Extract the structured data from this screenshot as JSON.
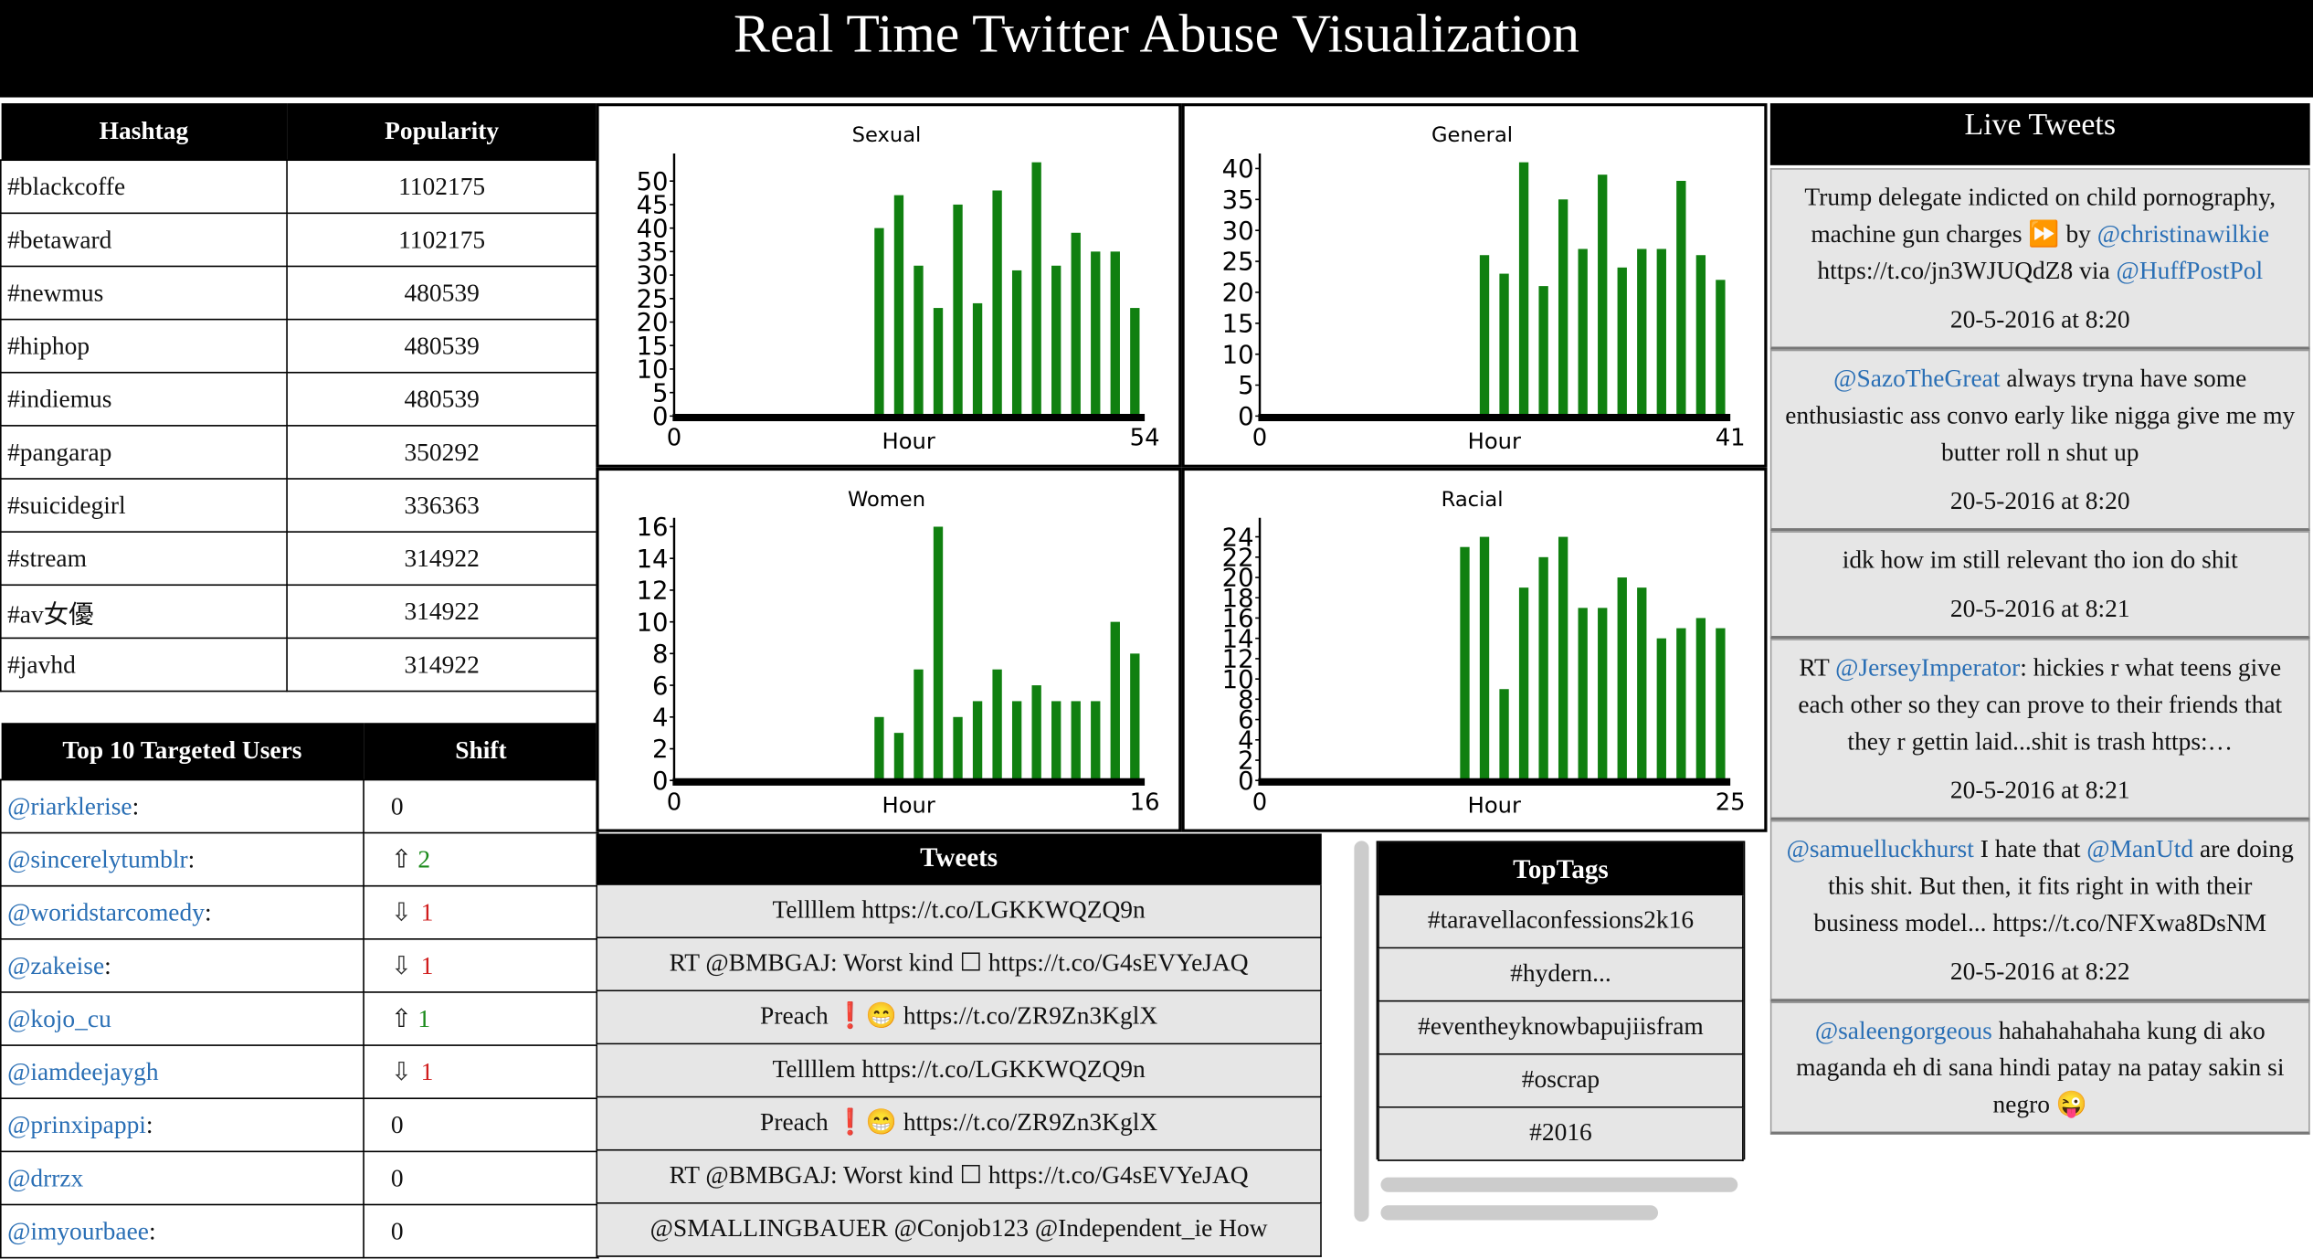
{
  "header": {
    "title": "Real Time Twitter Abuse Visualization"
  },
  "hashtags": {
    "columns": [
      "Hashtag",
      "Popularity"
    ],
    "rows": [
      [
        "#blackcoffe",
        "1102175"
      ],
      [
        "#betaward",
        "1102175"
      ],
      [
        "#newmus",
        "480539"
      ],
      [
        "#hiphop",
        "480539"
      ],
      [
        "#indiemus",
        "480539"
      ],
      [
        "#pangarap",
        "350292"
      ],
      [
        "#suicidegirl",
        "336363"
      ],
      [
        "#stream",
        "314922"
      ],
      [
        "#av女優",
        "314922"
      ],
      [
        "#javhd",
        "314922"
      ]
    ]
  },
  "users": {
    "columns": [
      "Top 10 Targeted Users",
      "Shift"
    ],
    "rows": [
      {
        "handle": "@riarklerise",
        "suffix": ":",
        "shift": "0",
        "direction": "none"
      },
      {
        "handle": "@sincerelytumblr",
        "suffix": ":",
        "shift": "2",
        "direction": "up"
      },
      {
        "handle": "@woridstarcomedy",
        "suffix": ":",
        "shift": "1",
        "direction": "down"
      },
      {
        "handle": "@zakeise",
        "suffix": ":",
        "shift": "1",
        "direction": "down"
      },
      {
        "handle": "@kojo_cu",
        "shift": "1",
        "direction": "up"
      },
      {
        "handle": "@iamdeejaygh",
        "shift": "1",
        "direction": "down"
      },
      {
        "handle": "@prinxipappi",
        "suffix": ":",
        "shift": "0",
        "direction": "none"
      },
      {
        "handle": "@drrzx",
        "shift": "0",
        "direction": "none"
      },
      {
        "handle": "@imyourbaee",
        "suffix": ":",
        "shift": "0",
        "direction": "none"
      }
    ]
  },
  "chart_data": [
    {
      "type": "bar",
      "title": "Sexual",
      "x_label": "Hour",
      "color": "#108010",
      "ylim": [
        0,
        54
      ],
      "yticks": [
        0,
        5,
        10,
        15,
        20,
        25,
        30,
        35,
        40,
        45,
        50
      ],
      "values": [
        0,
        0,
        0,
        0,
        0,
        0,
        0,
        0,
        0,
        0,
        40,
        47,
        32,
        23,
        45,
        24,
        48,
        31,
        54,
        32,
        39,
        35,
        35,
        23
      ]
    },
    {
      "type": "bar",
      "title": "General",
      "x_label": "Hour",
      "color": "#108010",
      "ylim": [
        0,
        41
      ],
      "yticks": [
        0,
        5,
        10,
        15,
        20,
        25,
        30,
        35,
        40
      ],
      "values": [
        0,
        0,
        0,
        0,
        0,
        0,
        0,
        0,
        0,
        0,
        0,
        26,
        23,
        41,
        21,
        35,
        27,
        39,
        24,
        27,
        27,
        38,
        26,
        22
      ]
    },
    {
      "type": "bar",
      "title": "Women",
      "x_label": "Hour",
      "color": "#108010",
      "ylim": [
        0,
        16
      ],
      "yticks": [
        0,
        2,
        4,
        6,
        8,
        10,
        12,
        14,
        16
      ],
      "values": [
        0,
        0,
        0,
        0,
        0,
        0,
        0,
        0,
        0,
        0,
        4,
        3,
        7,
        16,
        4,
        5,
        7,
        5,
        6,
        5,
        5,
        5,
        10,
        8
      ]
    },
    {
      "type": "bar",
      "title": "Racial",
      "x_label": "Hour",
      "color": "#108010",
      "ylim": [
        0,
        25
      ],
      "yticks": [
        0,
        2,
        4,
        6,
        8,
        10,
        12,
        14,
        16,
        18,
        20,
        22,
        24
      ],
      "values": [
        0,
        0,
        0,
        0,
        0,
        0,
        0,
        0,
        0,
        0,
        23,
        24,
        9,
        19,
        22,
        24,
        17,
        17,
        20,
        19,
        14,
        15,
        16,
        15
      ]
    }
  ],
  "tweets": {
    "title": "Tweets",
    "rows": [
      "Tellllem https://t.co/LGKKWQZQ9n",
      "RT @BMBGAJ: Worst kind ☐ https://t.co/G4sEVYeJAQ",
      "Preach ❗😁 https://t.co/ZR9Zn3KglX",
      "Tellllem https://t.co/LGKKWQZQ9n",
      "Preach ❗😁 https://t.co/ZR9Zn3KglX",
      "RT @BMBGAJ: Worst kind ☐ https://t.co/G4sEVYeJAQ",
      "@SMALLINGBAUER @Conjob123 @Independent_ie How"
    ]
  },
  "top_tags": {
    "title": "TopTags",
    "rows": [
      "#taravellaconfessions2k16",
      "#hydern...",
      "#eventheyknowbapujiisfram",
      "#oscrap",
      "#2016"
    ]
  },
  "live_tweets": {
    "title": "Live Tweets",
    "items": [
      {
        "parts": [
          {
            "text": "Trump delegate indicted on child pornography, machine gun charges ⏩ by "
          },
          {
            "mention": "@christinawilkie"
          },
          {
            "text": " https://t.co/jn3WJUQdZ8 via "
          },
          {
            "mention": "@HuffPostPol"
          }
        ],
        "date": "20-5-2016 at 8:20"
      },
      {
        "parts": [
          {
            "mention": "@SazoTheGreat"
          },
          {
            "text": " always tryna have some enthusiastic ass convo early like nigga give me my butter roll n shut up"
          }
        ],
        "date": "20-5-2016 at 8:20"
      },
      {
        "parts": [
          {
            "text": "idk how im still relevant tho ion do shit"
          }
        ],
        "date": "20-5-2016 at 8:21"
      },
      {
        "parts": [
          {
            "text": "RT "
          },
          {
            "mention": "@JerseyImperator"
          },
          {
            "text": ": hickies r what teens give each other so they can prove to their friends that they r gettin laid...shit is trash https:…"
          }
        ],
        "date": "20-5-2016 at 8:21"
      },
      {
        "parts": [
          {
            "mention": "@samuelluckhurst"
          },
          {
            "text": " I hate that "
          },
          {
            "mention": "@ManUtd"
          },
          {
            "text": " are doing this shit. But then, it fits right in with their business model... https://t.co/NFXwa8DsNM"
          }
        ],
        "date": "20-5-2016 at 8:22"
      },
      {
        "parts": [
          {
            "mention": "@saleengorgeous"
          },
          {
            "text": " hahahahahaha kung di ako maganda eh di sana hindi patay na patay sakin si negro 😜"
          }
        ]
      }
    ]
  }
}
